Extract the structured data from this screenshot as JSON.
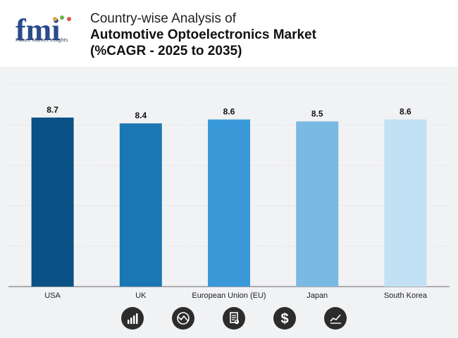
{
  "header": {
    "logo_text": "fmi",
    "logo_tagline": "Future Market Insights",
    "title_line1": "Country-wise Analysis of",
    "title_line2": "Automotive Optoelectronics Market",
    "title_line3": "(%CAGR - 2025 to 2035)"
  },
  "chart_data": {
    "type": "bar",
    "title": "Country-wise Analysis of Automotive Optoelectronics Market (%CAGR - 2025 to 2035)",
    "categories": [
      "USA",
      "UK",
      "European Union (EU)",
      "Japan",
      "South Korea"
    ],
    "values": [
      8.7,
      8.4,
      8.6,
      8.5,
      8.6
    ],
    "labels": [
      "8.7",
      "8.4",
      "8.6",
      "8.5",
      "8.6"
    ],
    "colors": [
      "#0a5186",
      "#1b77b3",
      "#3a9ad9",
      "#7ab9e2",
      "#c2e1f5"
    ],
    "xlabel": "",
    "ylabel": "",
    "ylim": [
      0,
      10.4
    ],
    "grid": true
  },
  "footer_icons": [
    "bar-chart-icon",
    "globe-icon",
    "document-icon",
    "dollar-icon",
    "line-chart-icon"
  ]
}
